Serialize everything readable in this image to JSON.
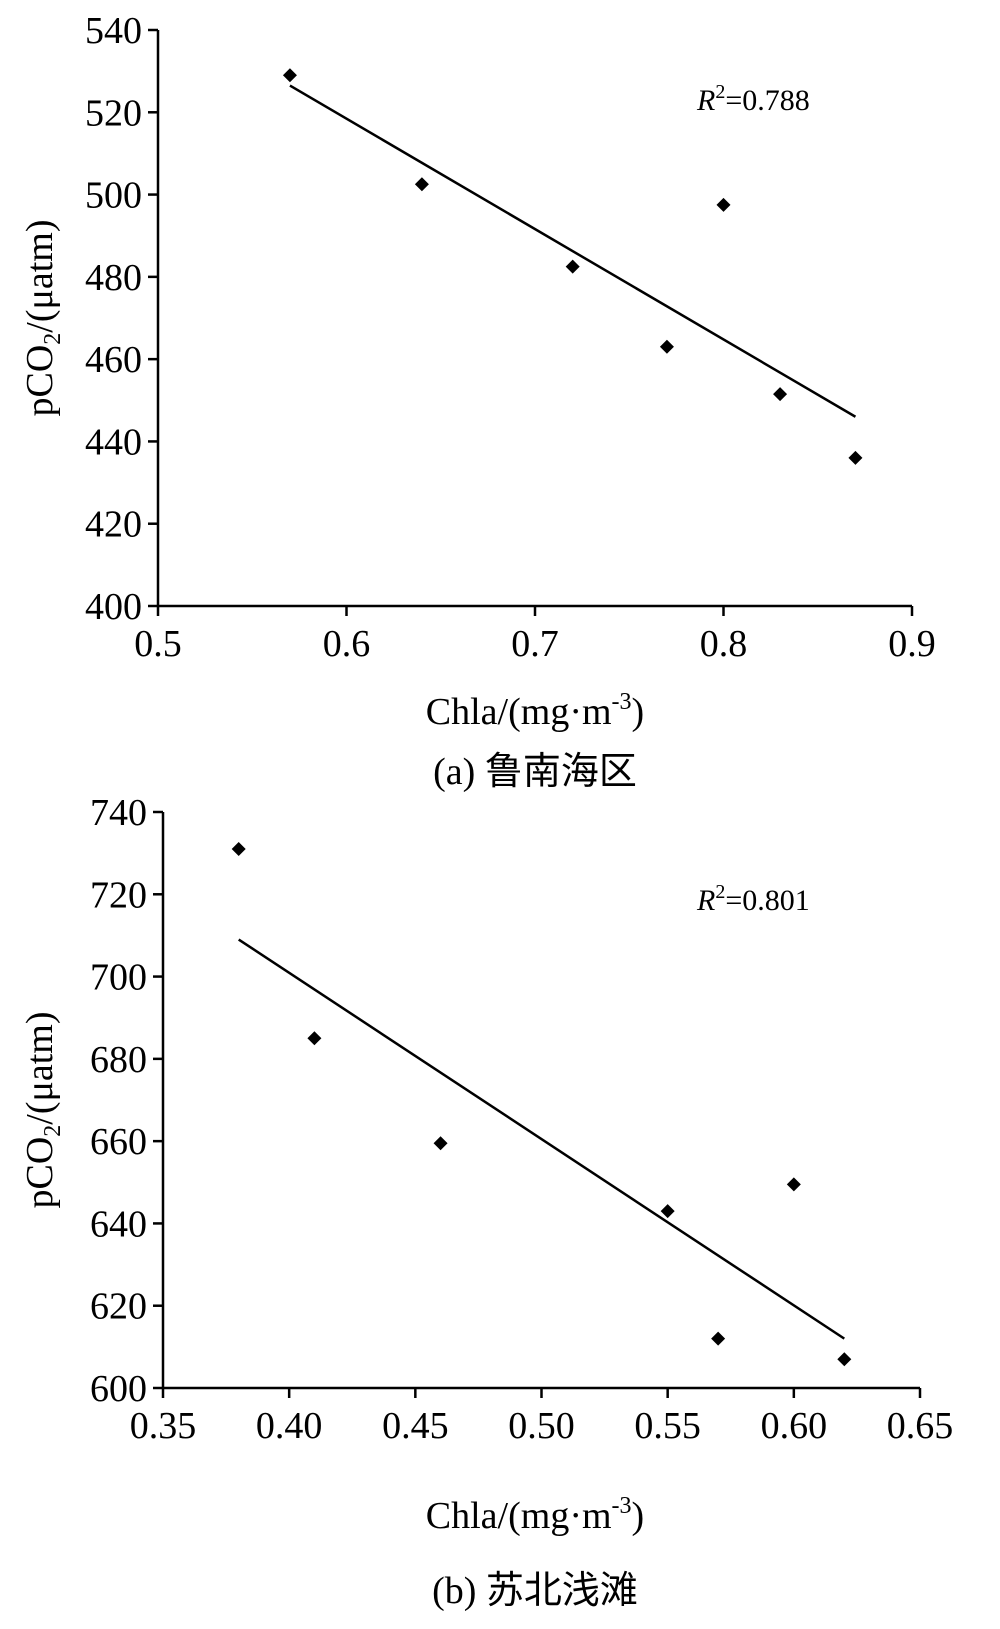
{
  "chart_data": [
    {
      "type": "scatter",
      "caption": "(a) 鲁南海区",
      "xlabel": {
        "main": "Chla/(mg·m",
        "sup": "-3",
        "end": ")"
      },
      "ylabel": {
        "main": "pCO",
        "sub": "2",
        "end": "/(μatm)"
      },
      "annotation": {
        "r": "R",
        "sup": "2",
        "value": "=0.788"
      },
      "xlim": [
        0.5,
        0.9
      ],
      "ylim": [
        400,
        540
      ],
      "xticks": [
        "0.5",
        "0.6",
        "0.7",
        "0.8",
        "0.9"
      ],
      "yticks": [
        "400",
        "420",
        "440",
        "460",
        "480",
        "500",
        "520",
        "540"
      ],
      "points": [
        {
          "x": 0.57,
          "y": 529
        },
        {
          "x": 0.64,
          "y": 502.5
        },
        {
          "x": 0.72,
          "y": 482.5
        },
        {
          "x": 0.77,
          "y": 463
        },
        {
          "x": 0.8,
          "y": 497.5
        },
        {
          "x": 0.83,
          "y": 451.5
        },
        {
          "x": 0.87,
          "y": 436
        }
      ],
      "trendline": {
        "x": [
          0.57,
          0.87
        ],
        "y": [
          526.5,
          446
        ]
      },
      "grid": false,
      "colors": {
        "marker": "#000000",
        "line": "#000000"
      }
    },
    {
      "type": "scatter",
      "caption": "(b) 苏北浅滩",
      "xlabel": {
        "main": "Chla/(mg·m",
        "sup": "-3",
        "end": ")"
      },
      "ylabel": {
        "main": "pCO",
        "sub": "2",
        "end": "/(μatm)"
      },
      "annotation": {
        "r": "R",
        "sup": "2",
        "value": "=0.801"
      },
      "xlim": [
        0.35,
        0.65
      ],
      "ylim": [
        600,
        740
      ],
      "xticks": [
        "0.35",
        "0.40",
        "0.45",
        "0.50",
        "0.55",
        "0.60",
        "0.65"
      ],
      "yticks": [
        "600",
        "620",
        "640",
        "660",
        "680",
        "700",
        "720",
        "740"
      ],
      "points": [
        {
          "x": 0.38,
          "y": 731
        },
        {
          "x": 0.41,
          "y": 685
        },
        {
          "x": 0.46,
          "y": 659.5
        },
        {
          "x": 0.55,
          "y": 643
        },
        {
          "x": 0.57,
          "y": 612
        },
        {
          "x": 0.6,
          "y": 649.5
        },
        {
          "x": 0.62,
          "y": 607
        }
      ],
      "trendline": {
        "x": [
          0.38,
          0.62
        ],
        "y": [
          709,
          612
        ]
      },
      "grid": false,
      "colors": {
        "marker": "#000000",
        "line": "#000000"
      }
    }
  ]
}
